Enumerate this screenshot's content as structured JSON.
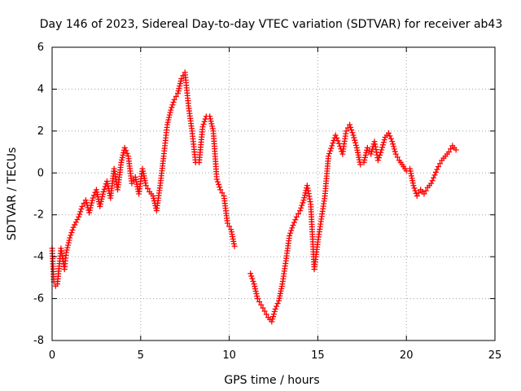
{
  "chart_data": {
    "type": "scatter",
    "title": "Day 146 of 2023, Sidereal Day-to-day VTEC variation (SDTVAR) for receiver ab43",
    "xlabel": "GPS time / hours",
    "ylabel": "SDTVAR / TECUs",
    "xlim": [
      0,
      25
    ],
    "ylim": [
      -8,
      6
    ],
    "xticks": [
      0,
      5,
      10,
      15,
      20,
      25
    ],
    "yticks": [
      -8,
      -6,
      -4,
      -2,
      0,
      2,
      4,
      6
    ],
    "grid": true,
    "marker": "+",
    "colors": {
      "series": "#ff0000",
      "grid": "#a0a0a0",
      "axes": "#000000"
    },
    "series": [
      {
        "name": "SDTVAR",
        "x": [
          0.0,
          0.1,
          0.2,
          0.3,
          0.5,
          0.7,
          0.8,
          1.0,
          1.2,
          1.5,
          1.7,
          1.9,
          2.1,
          2.3,
          2.5,
          2.7,
          2.9,
          3.1,
          3.3,
          3.5,
          3.7,
          3.9,
          4.1,
          4.3,
          4.5,
          4.7,
          4.9,
          5.1,
          5.3,
          5.5,
          5.7,
          5.9,
          6.1,
          6.3,
          6.5,
          6.7,
          6.9,
          7.1,
          7.3,
          7.5,
          7.7,
          7.9,
          8.1,
          8.3,
          8.5,
          8.7,
          8.9,
          9.1,
          9.3,
          9.5,
          9.7,
          9.9,
          10.1,
          10.3,
          11.2,
          11.4,
          11.6,
          11.8,
          12.0,
          12.2,
          12.4,
          12.6,
          12.8,
          13.0,
          13.2,
          13.4,
          13.6,
          13.8,
          14.0,
          14.2,
          14.4,
          14.6,
          14.8,
          15.0,
          15.2,
          15.4,
          15.6,
          15.8,
          16.0,
          16.2,
          16.4,
          16.6,
          16.8,
          17.0,
          17.2,
          17.4,
          17.6,
          17.8,
          18.0,
          18.2,
          18.4,
          18.6,
          18.8,
          19.0,
          19.2,
          19.4,
          19.6,
          20.0,
          20.2,
          20.4,
          20.6,
          20.8,
          21.0,
          21.2,
          21.4,
          21.6,
          21.8,
          22.0,
          22.2,
          22.4,
          22.6,
          22.8
        ],
        "y": [
          -3.6,
          -5.2,
          -5.4,
          -5.3,
          -3.6,
          -4.6,
          -3.8,
          -3.1,
          -2.6,
          -2.1,
          -1.6,
          -1.3,
          -1.9,
          -1.2,
          -0.8,
          -1.6,
          -0.9,
          -0.4,
          -1.2,
          0.2,
          -0.8,
          0.5,
          1.2,
          0.8,
          -0.5,
          -0.2,
          -1.0,
          0.2,
          -0.6,
          -0.9,
          -1.1,
          -1.8,
          -0.6,
          0.8,
          2.3,
          3.0,
          3.5,
          3.8,
          4.5,
          4.8,
          3.2,
          2.0,
          0.5,
          0.5,
          2.2,
          2.7,
          2.7,
          2.0,
          -0.3,
          -0.8,
          -1.1,
          -2.4,
          -2.7,
          -3.5,
          -4.8,
          -5.3,
          -6.0,
          -6.3,
          -6.6,
          -6.9,
          -7.1,
          -6.5,
          -6.1,
          -5.3,
          -4.2,
          -3.0,
          -2.5,
          -2.1,
          -1.8,
          -1.3,
          -0.6,
          -1.5,
          -4.6,
          -3.3,
          -2.2,
          -1.1,
          0.8,
          1.3,
          1.8,
          1.4,
          0.9,
          2.0,
          2.3,
          1.8,
          1.2,
          0.4,
          0.5,
          1.2,
          0.9,
          1.5,
          0.6,
          1.1,
          1.7,
          1.9,
          1.5,
          0.9,
          0.6,
          0.1,
          0.2,
          -0.6,
          -1.1,
          -0.8,
          -1.0,
          -0.7,
          -0.5,
          -0.1,
          0.3,
          0.6,
          0.8,
          1.0,
          1.3,
          1.1
        ]
      }
    ]
  }
}
